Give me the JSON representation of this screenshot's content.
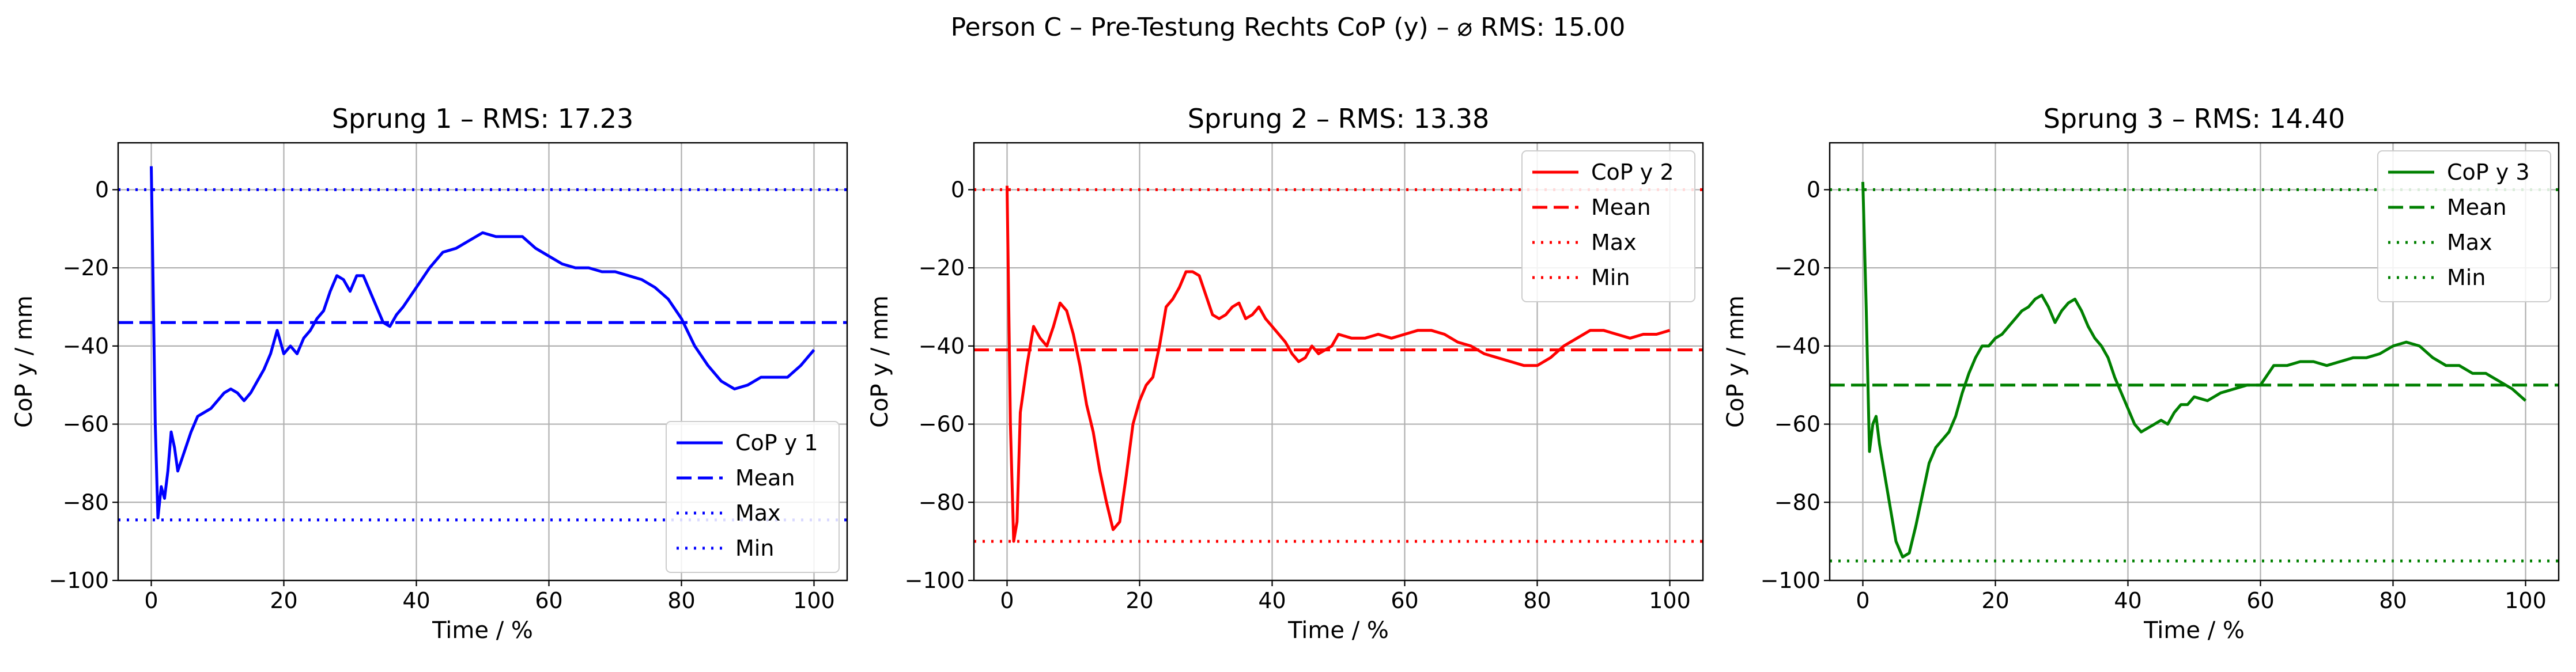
{
  "suptitle": "Person C – Pre-Testung Rechts CoP (y) – ⌀ RMS: 15.00",
  "chart_data": [
    {
      "type": "line",
      "title": "Sprung 1 – RMS: 17.23",
      "xlabel": "Time / %",
      "ylabel": "CoP y / mm",
      "xlim": [
        -5,
        105
      ],
      "ylim": [
        -100,
        12
      ],
      "xticks": [
        0,
        20,
        40,
        60,
        80,
        100
      ],
      "yticks": [
        0,
        -20,
        -40,
        -60,
        -80,
        -100
      ],
      "grid": true,
      "legend_position": "lower-right",
      "color": "#0000ff",
      "series": [
        {
          "name": "CoP y 1",
          "style": "solid",
          "x": [
            0,
            0.6,
            1,
            1.5,
            2,
            2.5,
            3,
            3.5,
            4,
            5,
            6,
            7,
            8,
            9,
            10,
            11,
            12,
            13,
            14,
            15,
            16,
            17,
            18,
            19,
            20,
            21,
            22,
            23,
            24,
            25,
            26,
            27,
            28,
            29,
            30,
            31,
            32,
            33,
            34,
            35,
            36,
            37,
            38,
            40,
            42,
            44,
            46,
            48,
            50,
            52,
            54,
            56,
            58,
            60,
            62,
            64,
            66,
            68,
            70,
            72,
            74,
            76,
            78,
            80,
            82,
            84,
            86,
            88,
            90,
            92,
            94,
            96,
            98,
            100
          ],
          "values": [
            6,
            -60,
            -84,
            -76,
            -79,
            -72,
            -62,
            -66,
            -72,
            -67,
            -62,
            -58,
            -57,
            -56,
            -54,
            -52,
            -51,
            -52,
            -54,
            -52,
            -49,
            -46,
            -42,
            -36,
            -42,
            -40,
            -42,
            -38,
            -36,
            -33,
            -31,
            -26,
            -22,
            -23,
            -26,
            -22,
            -22,
            -26,
            -30,
            -34,
            -35,
            -32,
            -30,
            -25,
            -20,
            -16,
            -15,
            -13,
            -11,
            -12,
            -12,
            -12,
            -15,
            -17,
            -19,
            -20,
            -20,
            -21,
            -21,
            -22,
            -23,
            -25,
            -28,
            -33,
            -40,
            -45,
            -49,
            -51,
            -50,
            -48,
            -48,
            -48,
            -45,
            -41
          ]
        },
        {
          "name": "Mean",
          "style": "dashed",
          "y": -34
        },
        {
          "name": "Max",
          "style": "dotted",
          "y": 0
        },
        {
          "name": "Min",
          "style": "dotted",
          "y": -84.5
        }
      ]
    },
    {
      "type": "line",
      "title": "Sprung 2 – RMS: 13.38",
      "xlabel": "Time / %",
      "ylabel": "CoP y / mm",
      "xlim": [
        -5,
        105
      ],
      "ylim": [
        -100,
        12
      ],
      "xticks": [
        0,
        20,
        40,
        60,
        80,
        100
      ],
      "yticks": [
        0,
        -20,
        -40,
        -60,
        -80,
        -100
      ],
      "grid": true,
      "legend_position": "top-right",
      "color": "#ff0000",
      "series": [
        {
          "name": "CoP y 2",
          "style": "solid",
          "x": [
            0,
            0.5,
            1,
            1.5,
            2,
            3,
            4,
            5,
            6,
            7,
            8,
            9,
            10,
            11,
            12,
            13,
            14,
            15,
            16,
            17,
            18,
            19,
            20,
            21,
            22,
            23,
            24,
            25,
            26,
            27,
            28,
            29,
            30,
            31,
            32,
            33,
            34,
            35,
            36,
            37,
            38,
            39,
            40,
            41,
            42,
            43,
            44,
            45,
            46,
            47,
            48,
            49,
            50,
            52,
            54,
            56,
            58,
            60,
            62,
            64,
            66,
            68,
            70,
            72,
            74,
            76,
            78,
            80,
            82,
            84,
            86,
            88,
            90,
            92,
            94,
            96,
            98,
            100
          ],
          "values": [
            1,
            -60,
            -90,
            -85,
            -57,
            -45,
            -35,
            -38,
            -40,
            -35,
            -29,
            -31,
            -37,
            -45,
            -55,
            -62,
            -72,
            -80,
            -87,
            -85,
            -73,
            -60,
            -54,
            -50,
            -48,
            -40,
            -30,
            -28,
            -25,
            -21,
            -21,
            -22,
            -27,
            -32,
            -33,
            -32,
            -30,
            -29,
            -33,
            -32,
            -30,
            -33,
            -35,
            -37,
            -39,
            -42,
            -44,
            -43,
            -40,
            -42,
            -41,
            -40,
            -37,
            -38,
            -38,
            -37,
            -38,
            -37,
            -36,
            -36,
            -37,
            -39,
            -40,
            -42,
            -43,
            -44,
            -45,
            -45,
            -43,
            -40,
            -38,
            -36,
            -36,
            -37,
            -38,
            -37,
            -37,
            -36
          ]
        },
        {
          "name": "Mean",
          "style": "dashed",
          "y": -41
        },
        {
          "name": "Max",
          "style": "dotted",
          "y": 0
        },
        {
          "name": "Min",
          "style": "dotted",
          "y": -90
        }
      ]
    },
    {
      "type": "line",
      "title": "Sprung 3 – RMS: 14.40",
      "xlabel": "Time / %",
      "ylabel": "CoP y / mm",
      "xlim": [
        -5,
        105
      ],
      "ylim": [
        -100,
        12
      ],
      "xticks": [
        0,
        20,
        40,
        60,
        80,
        100
      ],
      "yticks": [
        0,
        -20,
        -40,
        -60,
        -80,
        -100
      ],
      "grid": true,
      "legend_position": "top-right",
      "color": "#008000",
      "series": [
        {
          "name": "CoP y 3",
          "style": "solid",
          "x": [
            0,
            0.5,
            1,
            1.5,
            2,
            2.5,
            3,
            4,
            5,
            6,
            7,
            8,
            9,
            10,
            11,
            12,
            13,
            14,
            15,
            16,
            17,
            18,
            19,
            20,
            21,
            22,
            23,
            24,
            25,
            26,
            27,
            28,
            29,
            30,
            31,
            32,
            33,
            34,
            35,
            36,
            37,
            38,
            39,
            40,
            41,
            42,
            43,
            44,
            45,
            46,
            47,
            48,
            49,
            50,
            52,
            54,
            56,
            58,
            60,
            62,
            64,
            66,
            68,
            70,
            72,
            74,
            76,
            78,
            80,
            82,
            84,
            86,
            88,
            90,
            92,
            94,
            96,
            98,
            100
          ],
          "values": [
            2,
            -30,
            -67,
            -60,
            -58,
            -65,
            -70,
            -80,
            -90,
            -94,
            -93,
            -86,
            -78,
            -70,
            -66,
            -64,
            -62,
            -58,
            -52,
            -47,
            -43,
            -40,
            -40,
            -38,
            -37,
            -35,
            -33,
            -31,
            -30,
            -28,
            -27,
            -30,
            -34,
            -31,
            -29,
            -28,
            -31,
            -35,
            -38,
            -40,
            -43,
            -48,
            -52,
            -56,
            -60,
            -62,
            -61,
            -60,
            -59,
            -60,
            -57,
            -55,
            -55,
            -53,
            -54,
            -52,
            -51,
            -50,
            -50,
            -45,
            -45,
            -44,
            -44,
            -45,
            -44,
            -43,
            -43,
            -42,
            -40,
            -39,
            -40,
            -43,
            -45,
            -45,
            -47,
            -47,
            -49,
            -51,
            -54
          ]
        },
        {
          "name": "Mean",
          "style": "dashed",
          "y": -50
        },
        {
          "name": "Max",
          "style": "dotted",
          "y": 0
        },
        {
          "name": "Min",
          "style": "dotted",
          "y": -95
        }
      ]
    }
  ]
}
